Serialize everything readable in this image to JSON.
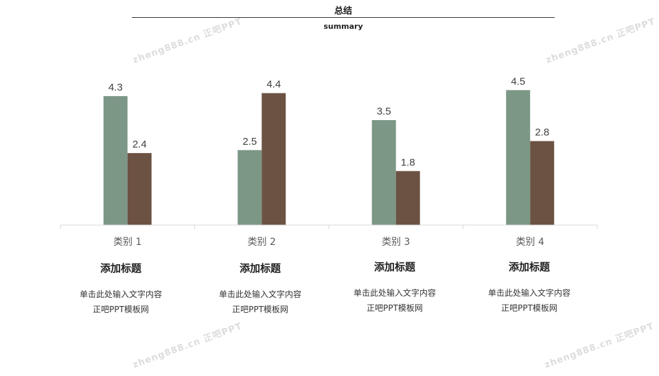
{
  "header": {
    "title": "总结",
    "subtitle": "summary"
  },
  "watermarks": [
    "zheng888.cn 正吧PPT",
    "zheng888.cn 正吧PPT",
    "zheng888.cn 正吧PPT",
    "zheng888.cn 正吧PPT"
  ],
  "columns": [
    {
      "heading": "添加标题",
      "line1": "单击此处输入文字内容",
      "line2": "正吧PPT模板网"
    },
    {
      "heading": "添加标题",
      "line1": "单击此处输入文字内容",
      "line2": "正吧PPT模板网"
    },
    {
      "heading": "添加标题",
      "line1": "单击此处输入文字内容",
      "line2": "正吧PPT模板网"
    },
    {
      "heading": "添加标题",
      "line1": "单击此处输入文字内容",
      "line2": "正吧PPT模板网"
    }
  ],
  "chart_data": {
    "type": "bar",
    "categories": [
      "类别 1",
      "类别 2",
      "类别 3",
      "类别 4"
    ],
    "series": [
      {
        "values": [
          4.3,
          2.5,
          3.5,
          4.5
        ],
        "color": "#7c9786"
      },
      {
        "values": [
          2.4,
          4.4,
          1.8,
          2.8
        ],
        "color": "#6b5242"
      }
    ],
    "ylim": [
      0,
      5
    ],
    "grid": false,
    "axis_color": "#d9d9d9",
    "data_labels": true
  }
}
